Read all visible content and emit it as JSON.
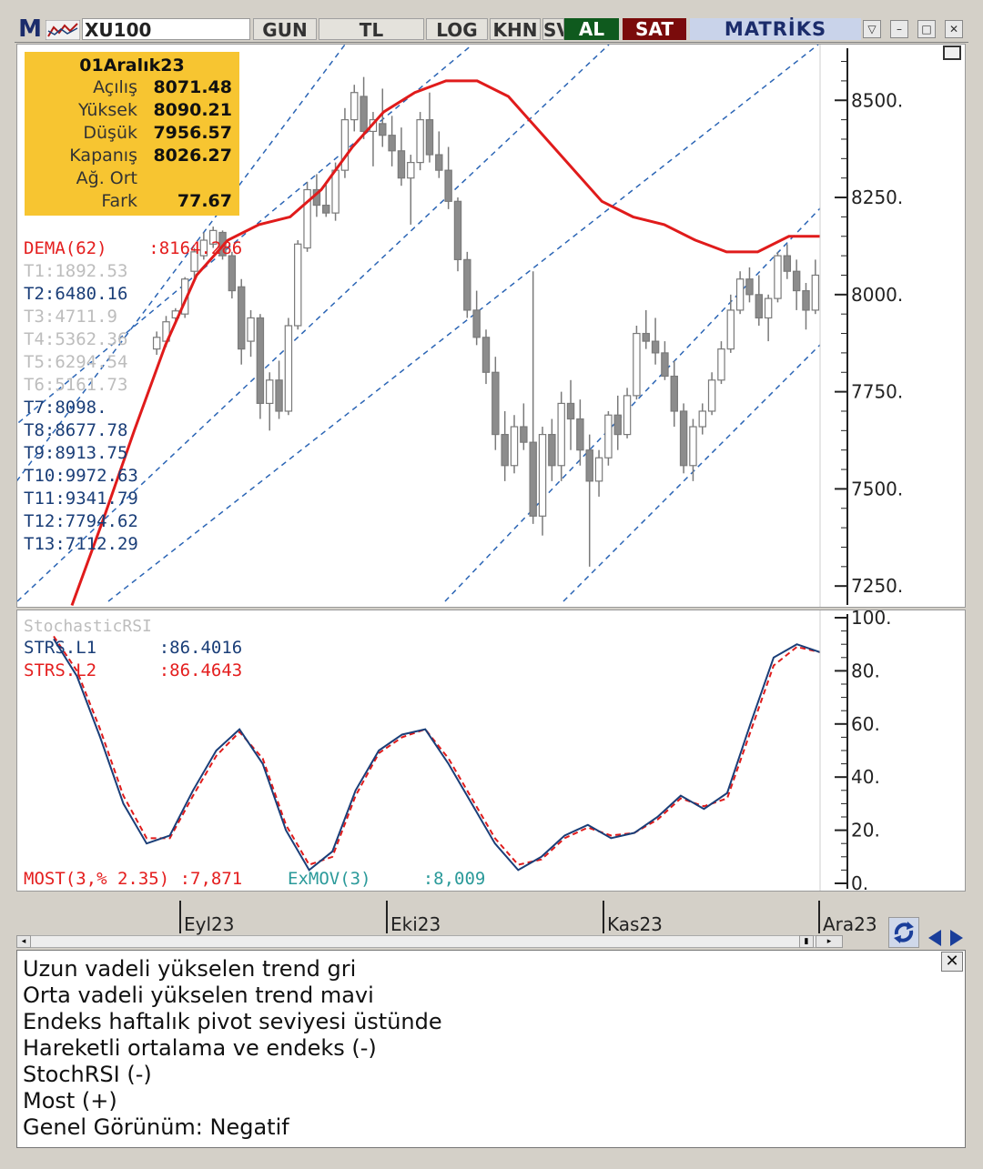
{
  "toolbar": {
    "logo": "M",
    "symbol": "XU100",
    "buttons": [
      "GUN",
      "TL",
      "LOG",
      "KHN",
      "SV"
    ],
    "buy": "AL",
    "sell": "SAT",
    "brand": "MATRİKS",
    "colors": {
      "buy": "#0f5a1e",
      "sell": "#7a0b0b"
    }
  },
  "ohlc": {
    "date": "01Aralık23",
    "rows": [
      {
        "label": "Açılış",
        "value": "8071.48"
      },
      {
        "label": "Yüksek",
        "value": "8090.21"
      },
      {
        "label": "Düşük",
        "value": "7956.57"
      },
      {
        "label": "Kapanış",
        "value": "8026.27"
      },
      {
        "label": "Ağ. Ort",
        "value": ""
      },
      {
        "label": "Fark",
        "value": "77.67"
      }
    ]
  },
  "indicators": {
    "dema": "DEMA(62)    :8164.286",
    "trends": [
      {
        "text": "T1:1892.53",
        "color": "grey"
      },
      {
        "text": "T2:6480.16",
        "color": "blue"
      },
      {
        "text": "T3:4711.9",
        "color": "grey"
      },
      {
        "text": "T4:5362.36",
        "color": "grey"
      },
      {
        "text": "T5:6294.54",
        "color": "grey"
      },
      {
        "text": "T6:5161.73",
        "color": "grey"
      },
      {
        "text": "T7:8098.",
        "color": "blue"
      },
      {
        "text": "T8:8677.78",
        "color": "blue"
      },
      {
        "text": "T9:8913.75",
        "color": "blue"
      },
      {
        "text": "T10:9972.63",
        "color": "blue"
      },
      {
        "text": "T11:9341.79",
        "color": "blue"
      },
      {
        "text": "T12:7794.62",
        "color": "blue"
      },
      {
        "text": "T13:7112.29",
        "color": "blue"
      }
    ]
  },
  "oscillator": {
    "name": "StochasticRSI",
    "l1": "STRS.L1      :86.4016",
    "l2": "STRS.L2      :86.4643",
    "most": "MOST(3,% 2.35) :7,871",
    "exmov": "ExMOV(3)     :8,009"
  },
  "price_axis": [
    "8500.",
    "8250.",
    "8000.",
    "7750.",
    "7500.",
    "7250."
  ],
  "osc_axis": [
    "100.",
    "80.",
    "60.",
    "40.",
    "20.",
    "0."
  ],
  "time_axis": [
    "Eyl23",
    "Eki23",
    "Kas23",
    "Ara23"
  ],
  "comment": {
    "lines": [
      "Uzun vadeli yükselen trend gri",
      "Orta vadeli yükselen trend mavi",
      "Endeks haftalık pivot seviyesi üstünde",
      "Hareketli ortalama ve endeks (-)",
      "StochRSI (-)",
      "Most (+)",
      "Genel Görünüm: Negatif"
    ]
  },
  "chart_data": {
    "type": "candlestick",
    "symbol": "XU100",
    "ylim": [
      7220,
      8620
    ],
    "candles": [
      [
        7860,
        7905,
        7845,
        7890
      ],
      [
        7880,
        7945,
        7865,
        7930
      ],
      [
        7940,
        7965,
        7925,
        7958
      ],
      [
        7950,
        8045,
        7940,
        8040
      ],
      [
        8060,
        8120,
        8040,
        8110
      ],
      [
        8100,
        8160,
        8090,
        8140
      ],
      [
        8130,
        8175,
        8120,
        8165
      ],
      [
        8160,
        8165,
        8090,
        8100
      ],
      [
        8100,
        8110,
        7990,
        8010
      ],
      [
        8020,
        8040,
        7820,
        7860
      ],
      [
        7880,
        7960,
        7840,
        7940
      ],
      [
        7940,
        7950,
        7680,
        7720
      ],
      [
        7720,
        7800,
        7650,
        7780
      ],
      [
        7780,
        7830,
        7680,
        7700
      ],
      [
        7700,
        7940,
        7690,
        7920
      ],
      [
        7920,
        8140,
        7910,
        8130
      ],
      [
        8120,
        8290,
        8110,
        8270
      ],
      [
        8270,
        8310,
        8200,
        8230
      ],
      [
        8230,
        8290,
        8200,
        8210
      ],
      [
        8210,
        8340,
        8190,
        8320
      ],
      [
        8320,
        8480,
        8300,
        8450
      ],
      [
        8450,
        8540,
        8420,
        8520
      ],
      [
        8510,
        8560,
        8400,
        8420
      ],
      [
        8420,
        8470,
        8330,
        8450
      ],
      [
        8440,
        8530,
        8380,
        8410
      ],
      [
        8410,
        8460,
        8330,
        8370
      ],
      [
        8370,
        8430,
        8280,
        8300
      ],
      [
        8300,
        8360,
        8180,
        8340
      ],
      [
        8340,
        8470,
        8320,
        8450
      ],
      [
        8450,
        8520,
        8340,
        8360
      ],
      [
        8360,
        8420,
        8300,
        8320
      ],
      [
        8320,
        8380,
        8220,
        8240
      ],
      [
        8240,
        8250,
        8060,
        8090
      ],
      [
        8090,
        8110,
        7940,
        7960
      ],
      [
        7960,
        8010,
        7870,
        7890
      ],
      [
        7890,
        7910,
        7770,
        7800
      ],
      [
        7800,
        7840,
        7600,
        7640
      ],
      [
        7640,
        7700,
        7520,
        7560
      ],
      [
        7560,
        7690,
        7540,
        7660
      ],
      [
        7660,
        7720,
        7600,
        7620
      ],
      [
        7620,
        8060,
        7410,
        7430
      ],
      [
        7430,
        7660,
        7380,
        7640
      ],
      [
        7640,
        7680,
        7520,
        7560
      ],
      [
        7560,
        7750,
        7520,
        7720
      ],
      [
        7720,
        7780,
        7600,
        7680
      ],
      [
        7680,
        7730,
        7560,
        7600
      ],
      [
        7600,
        7640,
        7300,
        7520
      ],
      [
        7520,
        7600,
        7480,
        7580
      ],
      [
        7580,
        7700,
        7560,
        7690
      ],
      [
        7690,
        7740,
        7600,
        7640
      ],
      [
        7640,
        7760,
        7630,
        7740
      ],
      [
        7740,
        7920,
        7730,
        7900
      ],
      [
        7900,
        7960,
        7860,
        7880
      ],
      [
        7880,
        7940,
        7820,
        7850
      ],
      [
        7850,
        7880,
        7780,
        7790
      ],
      [
        7790,
        7830,
        7660,
        7700
      ],
      [
        7700,
        7720,
        7540,
        7560
      ],
      [
        7560,
        7680,
        7520,
        7660
      ],
      [
        7660,
        7720,
        7640,
        7700
      ],
      [
        7700,
        7800,
        7690,
        7780
      ],
      [
        7780,
        7880,
        7770,
        7860
      ],
      [
        7860,
        8000,
        7850,
        7960
      ],
      [
        7960,
        8060,
        7950,
        8040
      ],
      [
        8040,
        8070,
        7980,
        8000
      ],
      [
        8000,
        8050,
        7920,
        7940
      ],
      [
        7940,
        8000,
        7880,
        7990
      ],
      [
        7990,
        8110,
        7980,
        8100
      ],
      [
        8100,
        8130,
        8040,
        8060
      ],
      [
        8060,
        8090,
        7960,
        8010
      ],
      [
        8010,
        8030,
        7910,
        7960
      ],
      [
        7960,
        8090,
        7950,
        8050
      ]
    ],
    "dema": [
      7200,
      7420,
      7650,
      7870,
      8050,
      8140,
      8180,
      8200,
      8270,
      8380,
      8470,
      8520,
      8550,
      8550,
      8510,
      8420,
      8330,
      8240,
      8200,
      8180,
      8140,
      8110,
      8110,
      8150,
      8150
    ],
    "stochrsi_l1": [
      92,
      78,
      55,
      30,
      15,
      18,
      35,
      50,
      58,
      45,
      20,
      5,
      12,
      35,
      50,
      56,
      58,
      45,
      30,
      15,
      5,
      10,
      18,
      22,
      17,
      19,
      25,
      33,
      28,
      34,
      60,
      85,
      90,
      87
    ],
    "stochrsi_l2": [
      93,
      80,
      58,
      33,
      17,
      17,
      33,
      48,
      57,
      47,
      22,
      7,
      10,
      33,
      49,
      55,
      58,
      47,
      32,
      17,
      7,
      9,
      17,
      21,
      18,
      19,
      24,
      32,
      29,
      32,
      57,
      82,
      89,
      87
    ],
    "price_ticks": [
      8500,
      8250,
      8000,
      7750,
      7500,
      7250
    ],
    "osc_ticks": [
      100,
      80,
      60,
      40,
      20,
      0
    ]
  }
}
